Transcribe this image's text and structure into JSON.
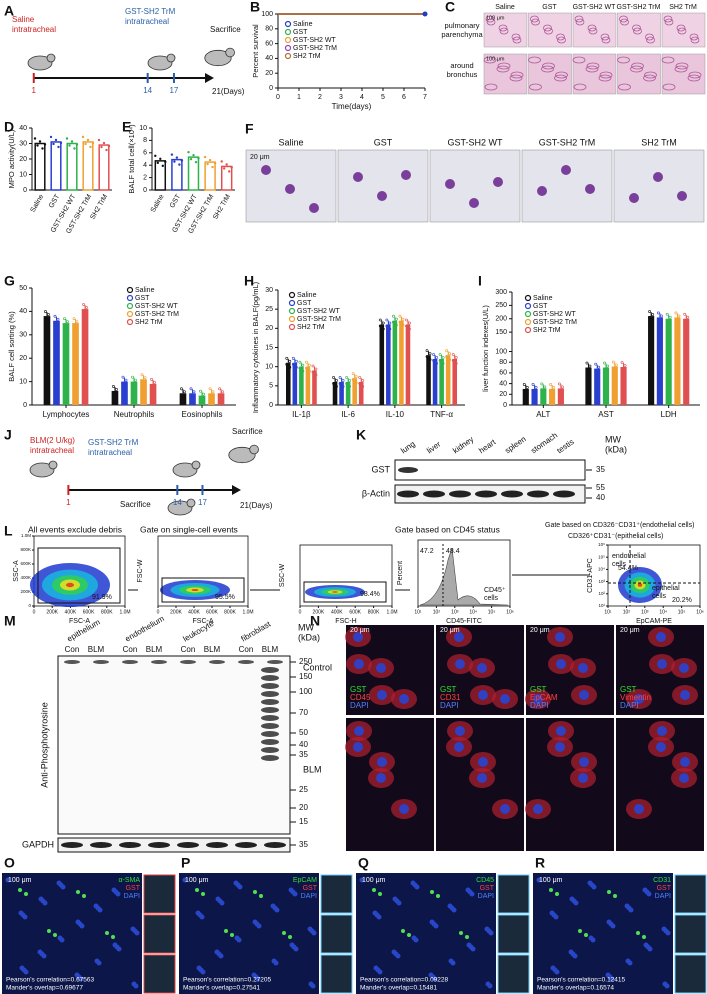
{
  "A": {
    "label": "A",
    "texts": [
      "Saline",
      "intratracheal",
      "GST-SH2 TrM",
      "intratracheal",
      "Sacrifice",
      "21(Days)"
    ],
    "days": [
      1,
      14,
      17
    ]
  },
  "B": {
    "label": "B",
    "chart": {
      "type": "line",
      "ylabel": "Percent survival",
      "xlabel": "Time(days)",
      "x": [
        0,
        1,
        2,
        3,
        4,
        5,
        6,
        7
      ],
      "xlim": [
        0,
        7
      ],
      "xticks": [
        0,
        1,
        2,
        3,
        4,
        5,
        6,
        7
      ],
      "ylim": [
        0,
        100
      ],
      "yticks": [
        0,
        20,
        40,
        60,
        80,
        100
      ],
      "series": [
        {
          "name": "Saline",
          "color": "#1f3fbf",
          "values": [
            100,
            100,
            100,
            100,
            100,
            100,
            100,
            100
          ]
        },
        {
          "name": "GST",
          "color": "#2db34a",
          "values": [
            100,
            100,
            100,
            100,
            100,
            100,
            100,
            100
          ]
        },
        {
          "name": "GST-SH2 WT",
          "color": "#f0a030",
          "values": [
            100,
            100,
            100,
            100,
            100,
            100,
            100,
            100
          ]
        },
        {
          "name": "GST-SH2 TrM",
          "color": "#9040c0",
          "values": [
            100,
            100,
            100,
            100,
            100,
            100,
            100,
            100
          ]
        },
        {
          "name": "SH2 TrM",
          "color": "#b07030",
          "values": [
            100,
            100,
            100,
            100,
            100,
            100,
            100,
            100
          ]
        }
      ]
    }
  },
  "C": {
    "label": "C",
    "columns": [
      "Saline",
      "GST",
      "GST-SH2 WT",
      "GST-SH2 TrM",
      "SH2 TrM"
    ],
    "rows": [
      [
        "pulmonary",
        "parenchyma"
      ],
      [
        "around",
        "bronchus"
      ]
    ],
    "scale": [
      "100 μm",
      "100 μm"
    ]
  },
  "D": {
    "label": "D",
    "chart": {
      "type": "bar",
      "ylabel": "MPO activity(U/L)",
      "categories": [
        "Saline",
        "GST",
        "GST-SH2 WT",
        "GST-SH2 TrM",
        "SH2 TrM"
      ],
      "values": [
        30,
        31,
        30,
        31,
        29
      ],
      "colors": [
        "#111111",
        "#2a3fd0",
        "#2db34a",
        "#f0a030",
        "#e05050"
      ],
      "ylim": [
        0,
        40
      ],
      "yticks": [
        0,
        10,
        20,
        30,
        40
      ]
    }
  },
  "E": {
    "label": "E",
    "chart": {
      "type": "bar",
      "ylabel": "BALF total cell(×10⁴)",
      "categories": [
        "Saline",
        "GST",
        "GST-SH2 WT",
        "GST-SH2 TrM",
        "SH2 TrM"
      ],
      "values": [
        4.7,
        4.9,
        5.3,
        4.5,
        3.8
      ],
      "colors": [
        "#111111",
        "#2a3fd0",
        "#2db34a",
        "#f0a030",
        "#e05050"
      ],
      "ylim": [
        0,
        10
      ],
      "yticks": [
        0,
        2,
        4,
        6,
        8,
        10
      ]
    }
  },
  "F": {
    "label": "F",
    "columns": [
      "Saline",
      "GST",
      "GST-SH2 WT",
      "GST-SH2 TrM",
      "SH2 TrM"
    ],
    "scale": "20 μm"
  },
  "G": {
    "label": "G",
    "chart": {
      "type": "grouped-bar",
      "ylabel": "BALF cell sorting (%)",
      "categories": [
        "Lymphocytes",
        "Neutrophils",
        "Eosinophils"
      ],
      "ylim": [
        0,
        50
      ],
      "yticks": [
        0,
        10,
        20,
        30,
        40,
        50
      ],
      "series": [
        {
          "name": "Saline",
          "color": "#111111",
          "values": [
            38,
            6,
            5
          ]
        },
        {
          "name": "GST",
          "color": "#2a3fd0",
          "values": [
            36,
            10,
            5
          ]
        },
        {
          "name": "GST-SH2 WT",
          "color": "#2db34a",
          "values": [
            35,
            10,
            4
          ]
        },
        {
          "name": "GST-SH2 TrM",
          "color": "#f0a030",
          "values": [
            35,
            11,
            5
          ]
        },
        {
          "name": "SH2 TrM",
          "color": "#e05050",
          "values": [
            41,
            9,
            5
          ]
        }
      ]
    }
  },
  "H": {
    "label": "H",
    "chart": {
      "type": "grouped-bar",
      "ylabel": "Inflammatory cytokines in BALF(pg/mL)",
      "categories": [
        "IL-1β",
        "IL-6",
        "IL-10",
        "TNF-α"
      ],
      "ylim": [
        0,
        30
      ],
      "yticks": [
        0,
        5,
        10,
        15,
        20,
        25,
        30
      ],
      "series": [
        {
          "name": "Saline",
          "color": "#111111",
          "values": [
            11,
            6,
            21,
            13
          ]
        },
        {
          "name": "GST",
          "color": "#2a3fd0",
          "values": [
            11,
            6,
            21,
            12
          ]
        },
        {
          "name": "GST-SH2 WT",
          "color": "#2db34a",
          "values": [
            10,
            6,
            22,
            12
          ]
        },
        {
          "name": "GST-SH2 TrM",
          "color": "#f0a030",
          "values": [
            10,
            7,
            22,
            13
          ]
        },
        {
          "name": "SH2 TrM",
          "color": "#e05050",
          "values": [
            9,
            6,
            21,
            12
          ]
        }
      ]
    }
  },
  "I": {
    "label": "I",
    "chart": {
      "type": "grouped-bar",
      "ylabel": "liver function indexes(U/L)",
      "categories": [
        "ALT",
        "AST",
        "LDH"
      ],
      "ylim": [
        0,
        300
      ],
      "axis_break": 100,
      "yticks": [
        0,
        20,
        40,
        60,
        80,
        100,
        150,
        200,
        250,
        300
      ],
      "series": [
        {
          "name": "Saline",
          "color": "#111111",
          "values": [
            30,
            70,
            210
          ]
        },
        {
          "name": "GST",
          "color": "#2a3fd0",
          "values": [
            30,
            68,
            205
          ]
        },
        {
          "name": "GST-SH2 WT",
          "color": "#2db34a",
          "values": [
            31,
            70,
            200
          ]
        },
        {
          "name": "GST-SH2 TrM",
          "color": "#f0a030",
          "values": [
            30,
            72,
            205
          ]
        },
        {
          "name": "SH2 TrM",
          "color": "#e05050",
          "values": [
            31,
            71,
            200
          ]
        }
      ]
    }
  },
  "J": {
    "label": "J",
    "texts": [
      "BLM(2 U/kg)",
      "intratracheal",
      "GST-SH2 TrM",
      "intratracheal",
      "Sacrifice",
      "Sacrifice",
      "21(Days)"
    ],
    "days": [
      1,
      14,
      17
    ]
  },
  "K": {
    "label": "K",
    "lanes": [
      "lung",
      "liver",
      "kidney",
      "heart",
      "spleen",
      "stomach",
      "testis"
    ],
    "mw": [
      "MW",
      "(kDa)"
    ],
    "rows": [
      "GST",
      "β-Actin"
    ],
    "markers": [
      35,
      55,
      40
    ]
  },
  "L": {
    "label": "L",
    "titles": [
      "All events exclude debris",
      "Gate on single-cell events",
      "Gate based on CD45 status",
      "Gate based on CD326⁻CD31⁺(endothelial cells)",
      "CD326⁺CD31⁻(epithelial cells)"
    ],
    "axes": [
      [
        "SSC-A",
        "FSC-A"
      ],
      [
        "FSC-W",
        "FSC-A"
      ],
      [
        "SSC-W",
        "FSC-H"
      ],
      [
        "Percent",
        "CD45-FITC"
      ],
      [
        "CD31-APC",
        "EpCAM-PE"
      ]
    ],
    "gates": [
      "91.9%",
      "95.5%",
      "98.4%",
      "47.2",
      "48.4",
      "54.4%",
      "20.2%"
    ],
    "notes": [
      "CD45⁺",
      "cells",
      "endothelial",
      "cells",
      "epithelial",
      "cells"
    ],
    "lin_lim": [
      0,
      1000000
    ],
    "lin_ticks": [
      0,
      {
        "value": 200000,
        "label": "200K"
      },
      {
        "value": 400000,
        "label": "400K"
      },
      {
        "value": 600000,
        "label": "600K"
      },
      {
        "value": 800000,
        "label": "800K"
      },
      {
        "value": 1000000,
        "label": "1.0M"
      }
    ],
    "log_lim": [
      10,
      1000000
    ],
    "log_ticks": [
      {
        "value": 10,
        "label": "10¹"
      },
      {
        "value": 100,
        "label": "10²"
      },
      {
        "value": 1000,
        "label": "10³"
      },
      {
        "value": 10000,
        "label": "10⁴"
      },
      {
        "value": 100000,
        "label": "10⁵"
      },
      {
        "value": 1000000,
        "label": "10⁶"
      }
    ]
  },
  "M": {
    "label": "M",
    "groups": [
      "epithelium",
      "endothelium",
      "leukocyte",
      "fibroblast"
    ],
    "conditions": [
      "Con",
      "BLM"
    ],
    "mw": [
      "MW",
      "(kDa)"
    ],
    "markers": [
      250,
      150,
      100,
      70,
      50,
      40,
      35,
      25,
      20,
      15
    ],
    "ylabel": "Anti-Phosphotyrosine",
    "loading": "GAPDH",
    "loading_marker": 35
  },
  "N": {
    "label": "N",
    "rows": [
      "Control",
      "BLM"
    ],
    "channels": [
      [
        "GST",
        "CD45",
        "DAPI"
      ],
      [
        "GST",
        "CD31",
        "DAPI"
      ],
      [
        "GST",
        "EpCAM",
        "DAPI"
      ],
      [
        "GST",
        "Vimentin",
        "DAPI"
      ]
    ],
    "scale": "20 μm"
  },
  "fluor": [
    {
      "label": "O",
      "channels": [
        "α-SMA",
        "GST",
        "DAPI"
      ],
      "scale": "100 μm",
      "stats": [
        "Pearson's correlation=0.67563",
        "Mander's overlap=0.69677"
      ]
    },
    {
      "label": "P",
      "channels": [
        "EpCAM",
        "GST",
        "DAPI"
      ],
      "scale": "100 μm",
      "stats": [
        "Pearson's correlation=0.27205",
        "Mander's overlap=0.27541"
      ]
    },
    {
      "label": "Q",
      "channels": [
        "CD45",
        "GST",
        "DAPI"
      ],
      "scale": "100 μm",
      "stats": [
        "Pearson's correlation=0.09228",
        "Mander's overlap=0.15481"
      ]
    },
    {
      "label": "R",
      "channels": [
        "CD31",
        "GST",
        "DAPI"
      ],
      "scale": "100 μm",
      "stats": [
        "Pearson's correlation=0.12415",
        "Mander's overlap=0.16574"
      ]
    }
  ]
}
